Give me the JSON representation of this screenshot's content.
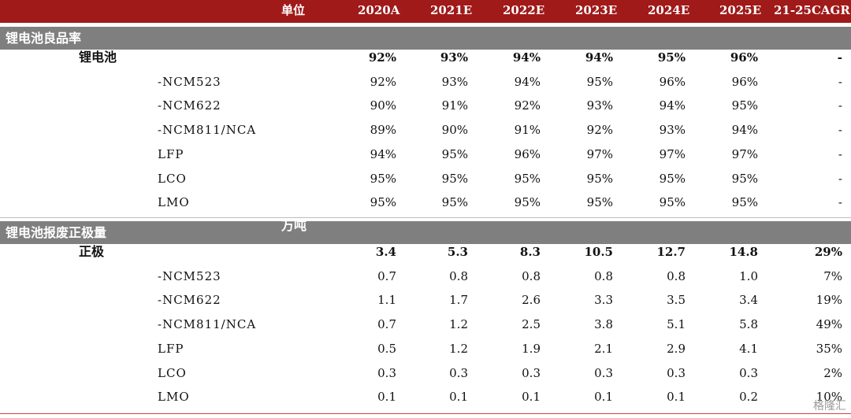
{
  "header": {
    "unit_label": "单位",
    "columns": [
      "2020A",
      "2021E",
      "2022E",
      "2023E",
      "2024E",
      "2025E",
      "21-25CAGR"
    ]
  },
  "section1": {
    "title": "锂电池良品率",
    "unit": "",
    "rows": [
      {
        "label": "锂电池",
        "values": [
          "92%",
          "93%",
          "94%",
          "94%",
          "95%",
          "96%",
          "-"
        ]
      },
      {
        "label": "-NCM523",
        "values": [
          "92%",
          "93%",
          "94%",
          "95%",
          "96%",
          "96%",
          "-"
        ]
      },
      {
        "label": "-NCM622",
        "values": [
          "90%",
          "91%",
          "92%",
          "93%",
          "94%",
          "95%",
          "-"
        ]
      },
      {
        "label": "-NCM811/NCA",
        "values": [
          "89%",
          "90%",
          "91%",
          "92%",
          "93%",
          "94%",
          "-"
        ]
      },
      {
        "label": "LFP",
        "values": [
          "94%",
          "95%",
          "96%",
          "97%",
          "97%",
          "97%",
          "-"
        ]
      },
      {
        "label": "LCO",
        "values": [
          "95%",
          "95%",
          "95%",
          "95%",
          "95%",
          "95%",
          "-"
        ]
      },
      {
        "label": "LMO",
        "values": [
          "95%",
          "95%",
          "95%",
          "95%",
          "95%",
          "95%",
          "-"
        ]
      }
    ]
  },
  "section2": {
    "title": "锂电池报废正极量",
    "unit": "万吨",
    "rows": [
      {
        "label": "正极",
        "values": [
          "3.4",
          "5.3",
          "8.3",
          "10.5",
          "12.7",
          "14.8",
          "29%"
        ]
      },
      {
        "label": "-NCM523",
        "values": [
          "0.7",
          "0.8",
          "0.8",
          "0.8",
          "0.8",
          "1.0",
          "7%"
        ]
      },
      {
        "label": "-NCM622",
        "values": [
          "1.1",
          "1.7",
          "2.6",
          "3.3",
          "3.5",
          "3.4",
          "19%"
        ]
      },
      {
        "label": "-NCM811/NCA",
        "values": [
          "0.7",
          "1.2",
          "2.5",
          "3.8",
          "5.1",
          "5.8",
          "49%"
        ]
      },
      {
        "label": "LFP",
        "values": [
          "0.5",
          "1.2",
          "1.9",
          "2.1",
          "2.9",
          "4.1",
          "35%"
        ]
      },
      {
        "label": "LCO",
        "values": [
          "0.3",
          "0.3",
          "0.3",
          "0.3",
          "0.3",
          "0.3",
          "2%"
        ]
      },
      {
        "label": "LMO",
        "values": [
          "0.1",
          "0.1",
          "0.1",
          "0.1",
          "0.1",
          "0.2",
          "10%"
        ]
      }
    ]
  },
  "watermark": "格隆汇"
}
